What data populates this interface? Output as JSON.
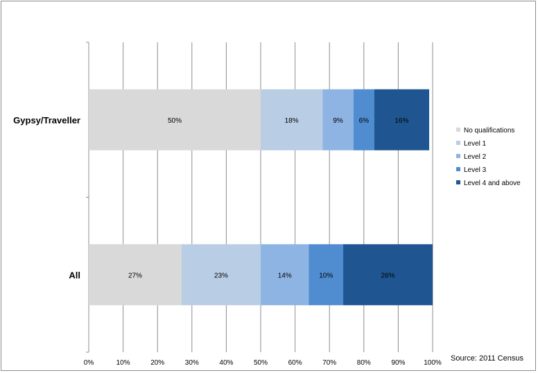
{
  "chart_data": {
    "type": "bar",
    "orientation": "horizontal",
    "stacked": true,
    "categories": [
      "Gypsy/Traveller",
      "All"
    ],
    "series": [
      {
        "name": "No qualifications",
        "values": [
          50,
          27
        ],
        "labels": [
          "50%",
          "27%"
        ],
        "color": "#d9d9d9"
      },
      {
        "name": "Level 1",
        "values": [
          18,
          23
        ],
        "labels": [
          "18%",
          "23%"
        ],
        "color": "#b9cde5"
      },
      {
        "name": "Level 2",
        "values": [
          9,
          14
        ],
        "labels": [
          "9%",
          "14%"
        ],
        "color": "#8eb4e3"
      },
      {
        "name": "Level 3",
        "values": [
          6,
          10
        ],
        "labels": [
          "6%",
          "10%"
        ],
        "color": "#4f8cd0"
      },
      {
        "name": "Level 4 and above",
        "values": [
          16,
          26
        ],
        "labels": [
          "16%",
          "26%"
        ],
        "color": "#1f5691"
      }
    ],
    "x_ticks": [
      "0%",
      "10%",
      "20%",
      "30%",
      "40%",
      "50%",
      "60%",
      "70%",
      "80%",
      "90%",
      "100%"
    ],
    "xlim": [
      0,
      100
    ],
    "grid": true,
    "legend_position": "right",
    "title": "",
    "xlabel": "",
    "ylabel": ""
  },
  "source_note": "Source: 2011 Census"
}
